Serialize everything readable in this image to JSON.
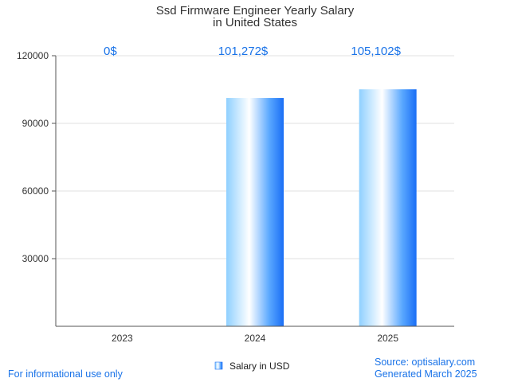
{
  "chart_data": {
    "type": "bar",
    "title_lines": [
      "Ssd Firmware Engineer Yearly Salary",
      "in United States"
    ],
    "categories": [
      "2023",
      "2024",
      "2025"
    ],
    "series": [
      {
        "name": "Salary in USD",
        "values": [
          0,
          101272,
          105102
        ]
      }
    ],
    "data_labels": [
      "0$",
      "101,272$",
      "105,102$"
    ],
    "y_ticks": [
      "30000",
      "60000",
      "90000",
      "120000"
    ],
    "ylim": [
      0,
      120000
    ],
    "grid": true,
    "legend_position": "bottom-center"
  },
  "colors": {
    "bar_dark": "#1a6ef5",
    "bar_light": "#ffffff",
    "bar_mid": "#7fc4ff",
    "label": "#1a73e8"
  },
  "footer": {
    "left": "For informational use only",
    "source": "Source: optisalary.com",
    "generated": "Generated March 2025"
  }
}
